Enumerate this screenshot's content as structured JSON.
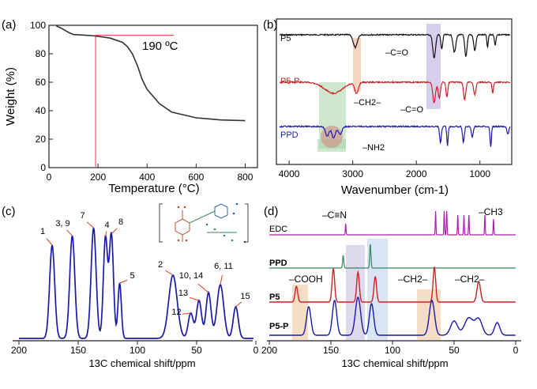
{
  "chart_data": [
    {
      "panel": "(a)",
      "type": "line",
      "title": "",
      "xlabel": "Temperature (°C)",
      "ylabel": "Weight (%)",
      "xlim": [
        0,
        850
      ],
      "ylim": [
        0,
        100
      ],
      "xticks": [
        "0",
        "200",
        "400",
        "600",
        "800"
      ],
      "yticks": [
        "0",
        "20",
        "40",
        "60",
        "80",
        "100"
      ],
      "annotation": "190 ºC",
      "marker_temperature": 190,
      "marker_weight": 93,
      "series": [
        {
          "color": "#333333",
          "x": [
            30,
            50,
            80,
            100,
            150,
            190,
            250,
            300,
            320,
            340,
            360,
            380,
            400,
            450,
            500,
            600,
            700,
            800
          ],
          "y": [
            99.5,
            98,
            95,
            93.5,
            93,
            92.5,
            91,
            88,
            85,
            80,
            72,
            62,
            55,
            45,
            39,
            35,
            33.5,
            33
          ]
        }
      ]
    },
    {
      "panel": "(b)",
      "type": "line",
      "xlabel": "Wavenumber (cm-1)",
      "xlim": [
        4200,
        500
      ],
      "xticks": [
        "4000",
        "3000",
        "2000",
        "1000"
      ],
      "series": [
        {
          "name": "P5",
          "color": "#111111"
        },
        {
          "name": "P5-P",
          "color": "#cc2222"
        },
        {
          "name": "PPD",
          "color": "#1a1aaa"
        }
      ],
      "annotations": [
        "–C=O",
        "–CH2–",
        "–C=O",
        "–NH2"
      ]
    },
    {
      "panel": "(c)",
      "type": "line",
      "xlabel": "13C chemical shift/ppm",
      "xlim": [
        200,
        0
      ],
      "xticks": [
        "200",
        "150",
        "100",
        "50",
        "0"
      ],
      "peak_labels": [
        {
          "label": "1",
          "ppm": 172
        },
        {
          "label": "3, 9",
          "ppm": 155
        },
        {
          "label": "7",
          "ppm": 137
        },
        {
          "label": "4",
          "ppm": 127
        },
        {
          "label": "8",
          "ppm": 122
        },
        {
          "label": "5",
          "ppm": 115
        },
        {
          "label": "2",
          "ppm": 70
        },
        {
          "label": "12",
          "ppm": 55
        },
        {
          "label": "13",
          "ppm": 48
        },
        {
          "label": "10, 14",
          "ppm": 40
        },
        {
          "label": "6, 11",
          "ppm": 30
        },
        {
          "label": "15",
          "ppm": 17
        }
      ]
    },
    {
      "panel": "(d)",
      "type": "line",
      "xlabel": "13C chemical shift/ppm",
      "xlim": [
        200,
        0
      ],
      "xticks": [
        "200",
        "150",
        "100",
        "50",
        "0"
      ],
      "series": [
        {
          "name": "EDC",
          "color": "#aa22aa"
        },
        {
          "name": "PPD",
          "color": "#338855"
        },
        {
          "name": "P5",
          "color": "#cc2222"
        },
        {
          "name": "P5-P",
          "color": "#1a1aaa"
        }
      ],
      "annotations": [
        "–C≡N",
        "–CH3",
        "–COOH",
        "–CH2–",
        "–CH2–"
      ]
    }
  ]
}
